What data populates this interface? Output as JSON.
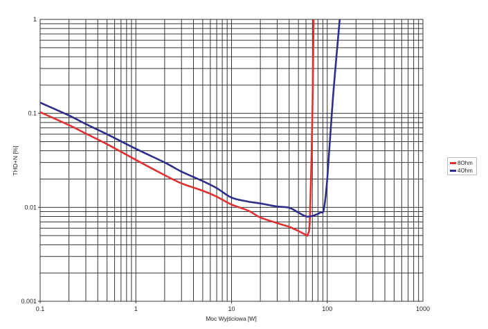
{
  "chart_data": {
    "type": "line",
    "title": "",
    "xlabel": "Moc Wyjściowa [W]",
    "ylabel": "THD+N [%]",
    "xscale": "log",
    "yscale": "log",
    "xlim": [
      0.1,
      1000
    ],
    "ylim": [
      0.001,
      1
    ],
    "xticks": [
      "0.1",
      "1",
      "10",
      "100",
      "1000"
    ],
    "yticks": [
      "0.001",
      "0.01",
      "0.1",
      "1"
    ],
    "grid": true,
    "legend_position": "right",
    "series": [
      {
        "name": "8Ohm",
        "color": "#e03030",
        "x": [
          0.1,
          0.2,
          0.3,
          0.5,
          1,
          2,
          3,
          5,
          7,
          10,
          15,
          20,
          30,
          40,
          50,
          60,
          63,
          66,
          70,
          72
        ],
        "y": [
          0.103,
          0.075,
          0.061,
          0.047,
          0.032,
          0.022,
          0.018,
          0.015,
          0.013,
          0.0107,
          0.0092,
          0.0078,
          0.0068,
          0.0062,
          0.0056,
          0.0051,
          0.0052,
          0.008,
          0.1,
          1
        ]
      },
      {
        "name": "4Ohm",
        "color": "#2e2e8a",
        "x": [
          0.1,
          0.2,
          0.3,
          0.5,
          1,
          2,
          3,
          5,
          7,
          10,
          15,
          20,
          30,
          40,
          50,
          60,
          70,
          85,
          92,
          100,
          115,
          135
        ],
        "y": [
          0.13,
          0.095,
          0.077,
          0.06,
          0.042,
          0.03,
          0.024,
          0.019,
          0.016,
          0.0127,
          0.0115,
          0.011,
          0.0102,
          0.0099,
          0.0088,
          0.008,
          0.0081,
          0.0088,
          0.0095,
          0.02,
          0.15,
          1
        ]
      }
    ]
  },
  "legend": {
    "items": [
      {
        "label": "8Ohm",
        "color": "#e03030"
      },
      {
        "label": "4Ohm",
        "color": "#2e2e8a"
      }
    ]
  }
}
